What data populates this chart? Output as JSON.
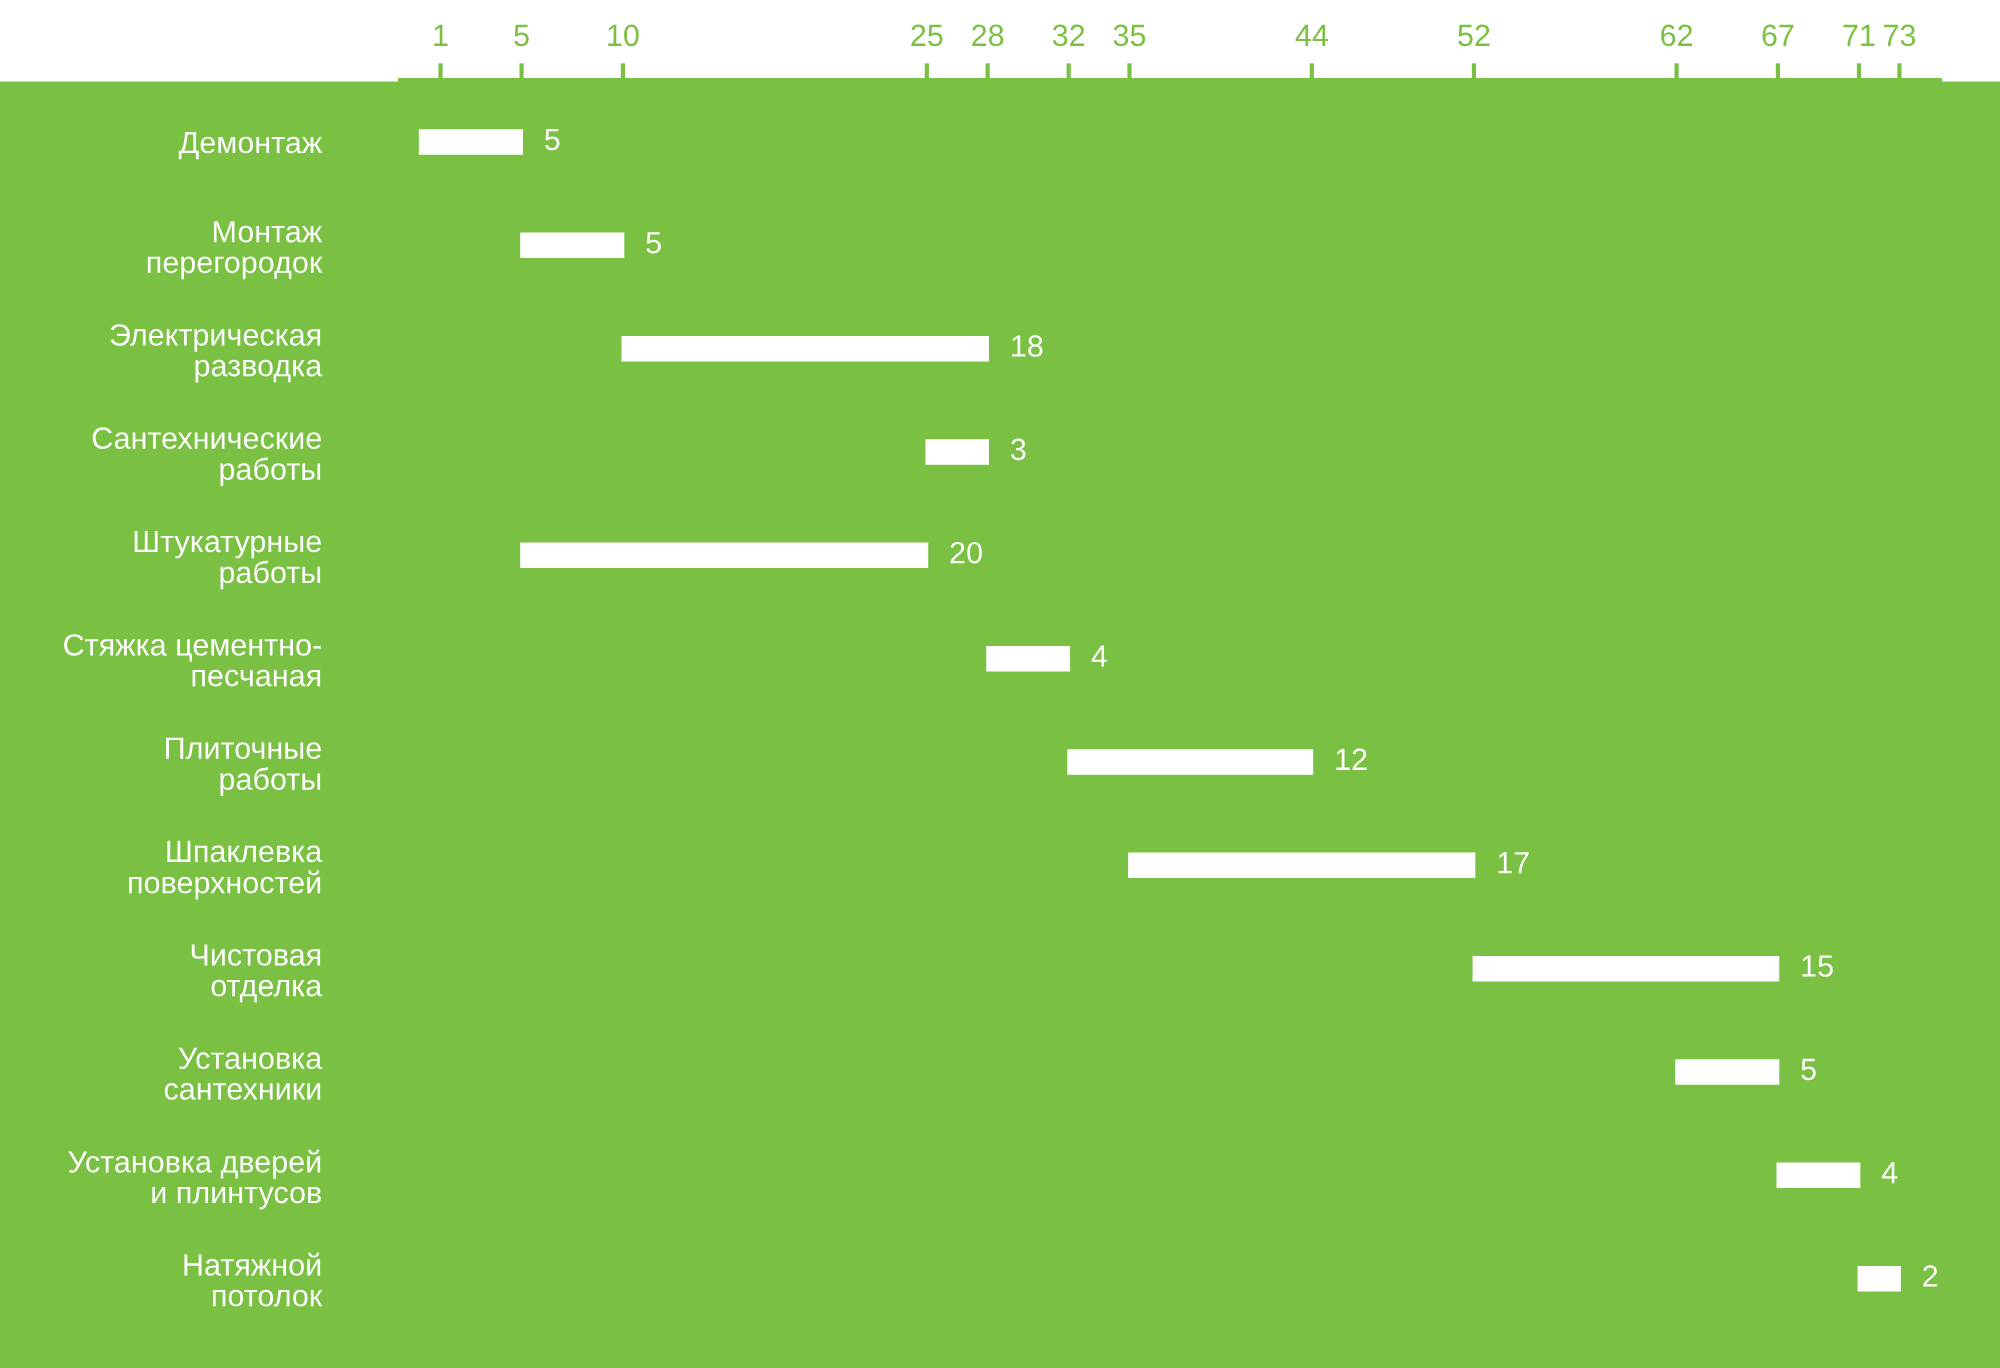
{
  "chart_data": {
    "type": "bar",
    "orientation": "horizontal",
    "categories": [
      "Демонтаж",
      "Монтаж\nперегородок",
      "Электрическая\nразводка",
      "Сантехнические\nработы",
      "Штукатурные\nработы",
      "Стяжка цементно-\nпесчаная",
      "Плиточные\nработы",
      "Шпаклевка\nповерхностей",
      "Чистовая\nотделка",
      "Установка\nсантехники",
      "Установка дверей\nи плинтусов",
      "Натяжной\nпотолок"
    ],
    "base": [
      0,
      5,
      10,
      25,
      5,
      28,
      32,
      35,
      52,
      62,
      67,
      71
    ],
    "values": [
      5,
      5,
      18,
      3,
      20,
      4,
      12,
      17,
      15,
      5,
      4,
      2
    ],
    "color": "#ffffff",
    "data_labels": true,
    "xlim": [
      -1,
      75
    ],
    "xticks": [
      1,
      5,
      10,
      25,
      28,
      32,
      35,
      44,
      52,
      62,
      67,
      71,
      73
    ],
    "grid": false,
    "legend": false
  }
}
